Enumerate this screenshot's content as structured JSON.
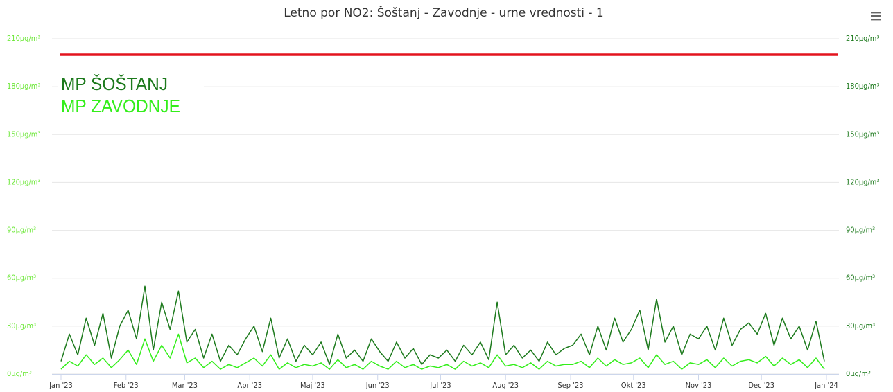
{
  "chart_data": {
    "type": "line",
    "title": "Letno por NO2: Šoštanj - Zavodnje - urne vrednosti - 1",
    "x": [
      0,
      4,
      8,
      12,
      16,
      20,
      24,
      28,
      32,
      36,
      40,
      44,
      48,
      52,
      56,
      60,
      64,
      68,
      72,
      76,
      80,
      84,
      88,
      92,
      96,
      100,
      104,
      108,
      112,
      116,
      120,
      124,
      128,
      132,
      136,
      140,
      144,
      148,
      152,
      156,
      160,
      164,
      168,
      172,
      176,
      180,
      184,
      188,
      192,
      196,
      200,
      204,
      208,
      212,
      216,
      220,
      224,
      228,
      232,
      236,
      240,
      244,
      248,
      252,
      256,
      260,
      264,
      268,
      272,
      276,
      280,
      284,
      288,
      292,
      296,
      300,
      304,
      308,
      312,
      316,
      320,
      324,
      328,
      332,
      336,
      340,
      344,
      348,
      352,
      356,
      360,
      364
    ],
    "xlim": [
      0,
      365
    ],
    "xticks": [
      {
        "value": 0,
        "label": "Jan '23"
      },
      {
        "value": 31,
        "label": "Feb '23"
      },
      {
        "value": 59,
        "label": "Mar '23"
      },
      {
        "value": 90,
        "label": "Apr '23"
      },
      {
        "value": 120,
        "label": "Maj '23"
      },
      {
        "value": 151,
        "label": "Jun '23"
      },
      {
        "value": 181,
        "label": "Jul '23"
      },
      {
        "value": 212,
        "label": "Aug '23"
      },
      {
        "value": 243,
        "label": "Sep '23"
      },
      {
        "value": 273,
        "label": "Okt '23"
      },
      {
        "value": 304,
        "label": "Nov '23"
      },
      {
        "value": 334,
        "label": "Dec '23"
      },
      {
        "value": 365,
        "label": "Jan '24"
      }
    ],
    "ylim": [
      0,
      210
    ],
    "yticks": [
      {
        "value": 0,
        "label": "0µg/m³"
      },
      {
        "value": 30,
        "label": "30µg/m³"
      },
      {
        "value": 60,
        "label": "60µg/m³"
      },
      {
        "value": 90,
        "label": "90µg/m³"
      },
      {
        "value": 120,
        "label": "120µg/m³"
      },
      {
        "value": 150,
        "label": "150µg/m³"
      },
      {
        "value": 180,
        "label": "180µg/m³"
      },
      {
        "value": 210,
        "label": "210µg/m³"
      }
    ],
    "y2lim": [
      0,
      210
    ],
    "y2ticks": [
      {
        "value": 0,
        "label": "0µg/m³"
      },
      {
        "value": 30,
        "label": "30µg/m³"
      },
      {
        "value": 60,
        "label": "60µg/m³"
      },
      {
        "value": 90,
        "label": "90µg/m³"
      },
      {
        "value": 120,
        "label": "120µg/m³"
      },
      {
        "value": 150,
        "label": "150µg/m³"
      },
      {
        "value": 180,
        "label": "180µg/m³"
      },
      {
        "value": 210,
        "label": "210µg/m³"
      }
    ],
    "yaxis_color": "#6ee83a",
    "y2axis_color": "#1d7a1d",
    "grid": true,
    "legend": "top-left",
    "plot_lines": [
      {
        "value": 200,
        "color": "#e3141e"
      }
    ],
    "series": [
      {
        "name": "MP ŠOŠTANJ",
        "color": "#1d7a1d",
        "axis": "y2",
        "values": [
          8,
          25,
          12,
          35,
          18,
          38,
          10,
          30,
          40,
          22,
          55,
          15,
          45,
          28,
          52,
          20,
          28,
          10,
          25,
          8,
          18,
          12,
          22,
          30,
          14,
          35,
          10,
          22,
          8,
          18,
          12,
          20,
          6,
          25,
          10,
          15,
          8,
          22,
          14,
          8,
          20,
          10,
          16,
          6,
          12,
          10,
          15,
          8,
          18,
          12,
          20,
          9,
          45,
          12,
          18,
          10,
          15,
          8,
          20,
          12,
          16,
          18,
          25,
          12,
          30,
          15,
          35,
          20,
          28,
          40,
          15,
          47,
          20,
          30,
          12,
          25,
          22,
          30,
          15,
          35,
          18,
          28,
          32,
          25,
          38,
          18,
          35,
          22,
          30,
          15,
          33,
          8
        ]
      },
      {
        "name": "MP ZAVODNJE",
        "color": "#33ee1a",
        "values": [
          3,
          8,
          5,
          12,
          6,
          10,
          4,
          9,
          15,
          6,
          22,
          8,
          18,
          10,
          25,
          7,
          10,
          4,
          8,
          3,
          6,
          4,
          7,
          10,
          5,
          12,
          3,
          7,
          4,
          6,
          5,
          7,
          3,
          9,
          4,
          6,
          3,
          8,
          5,
          3,
          8,
          4,
          6,
          3,
          5,
          4,
          6,
          3,
          8,
          5,
          7,
          4,
          12,
          5,
          6,
          4,
          7,
          3,
          8,
          5,
          6,
          6,
          8,
          4,
          10,
          5,
          9,
          6,
          7,
          10,
          4,
          12,
          6,
          8,
          3,
          7,
          6,
          9,
          4,
          10,
          5,
          8,
          9,
          7,
          11,
          5,
          10,
          6,
          9,
          4,
          10,
          3
        ]
      }
    ]
  }
}
